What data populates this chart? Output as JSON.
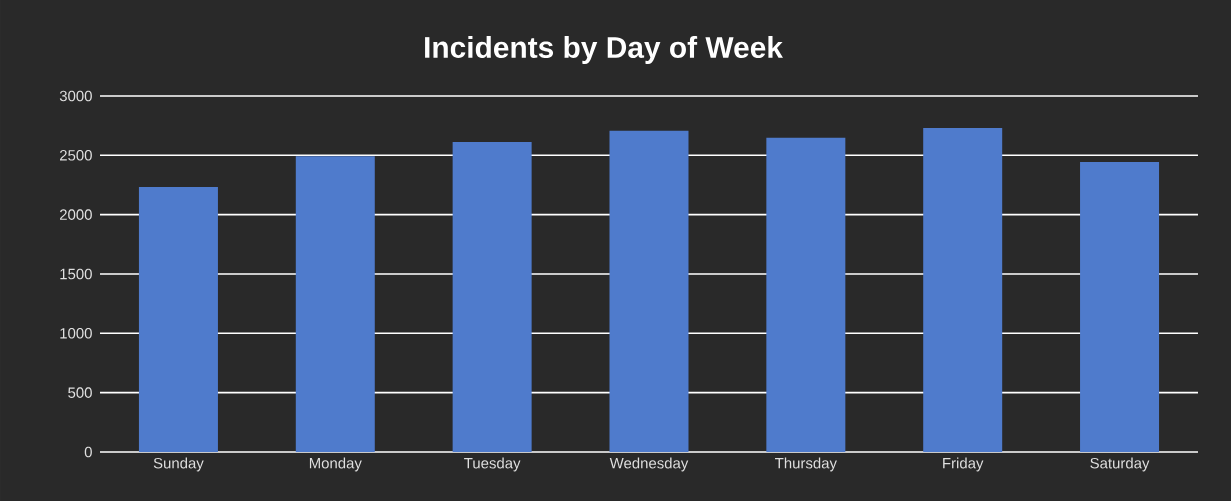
{
  "chart_data": {
    "type": "bar",
    "title": "Incidents by Day of Week",
    "categories": [
      "Sunday",
      "Monday",
      "Tuesday",
      "Wednesday",
      "Thursday",
      "Friday",
      "Saturday"
    ],
    "values": [
      2234,
      2492,
      2612,
      2706,
      2647,
      2731,
      2444
    ],
    "color": "#4f7bcc",
    "ylim": [
      0,
      3000
    ],
    "yticks": [
      0,
      500,
      1000,
      1500,
      2000,
      2500,
      3000
    ],
    "grid": "y"
  }
}
